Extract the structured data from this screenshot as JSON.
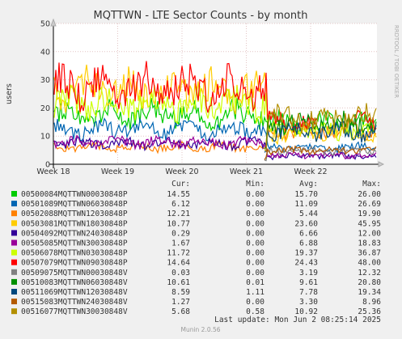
{
  "chart_data": {
    "type": "line",
    "title": "MQTTWN - LTE Sector Counts - by month",
    "ylabel": "users",
    "xlabel": "",
    "side_label": "RRDTOOL / TOBI OETIKER",
    "ylim": [
      0,
      50
    ],
    "yticks": [
      "0",
      "10",
      "20",
      "30",
      "40",
      "50"
    ],
    "xticks": [
      "Week 18",
      "Week 19",
      "Week 20",
      "Week 21",
      "Week 22"
    ],
    "grid": true,
    "legend_headers": {
      "cur": "Cur:",
      "min": "Min:",
      "avg": "Avg:",
      "max": "Max:"
    },
    "series": [
      {
        "name": "00500084MQTTWN00030848P",
        "color": "#00cc00",
        "cur": "14.55",
        "min": "0.00",
        "avg": "15.70",
        "max": "26.00"
      },
      {
        "name": "00501089MQTTWN06030848P",
        "color": "#0066b3",
        "cur": "6.12",
        "min": "0.00",
        "avg": "11.09",
        "max": "26.69"
      },
      {
        "name": "00502088MQTTWN12030848P",
        "color": "#ff8000",
        "cur": "12.21",
        "min": "0.00",
        "avg": "5.44",
        "max": "19.90"
      },
      {
        "name": "00503081MQTTWN18030848P",
        "color": "#ffcc00",
        "cur": "10.77",
        "min": "0.00",
        "avg": "23.60",
        "max": "45.95"
      },
      {
        "name": "00504092MQTTWN24030848P",
        "color": "#330099",
        "cur": "0.29",
        "min": "0.00",
        "avg": "6.66",
        "max": "12.00"
      },
      {
        "name": "00505085MQTTWN30030848P",
        "color": "#990099",
        "cur": "1.67",
        "min": "0.00",
        "avg": "6.88",
        "max": "18.83"
      },
      {
        "name": "00506078MQTTWN03030848P",
        "color": "#ccff00",
        "cur": "11.72",
        "min": "0.00",
        "avg": "19.37",
        "max": "36.87"
      },
      {
        "name": "00507079MQTTWN09030848P",
        "color": "#ff0000",
        "cur": "14.64",
        "min": "0.00",
        "avg": "24.43",
        "max": "48.00"
      },
      {
        "name": "00509075MQTTWN00030848V",
        "color": "#808080",
        "cur": "0.03",
        "min": "0.00",
        "avg": "3.19",
        "max": "12.32"
      },
      {
        "name": "00510083MQTTWN06030848V",
        "color": "#008f00",
        "cur": "10.61",
        "min": "0.01",
        "avg": "9.61",
        "max": "20.80"
      },
      {
        "name": "00511069MQTTWN12030848V",
        "color": "#00487d",
        "cur": "8.59",
        "min": "1.11",
        "avg": "7.78",
        "max": "19.34"
      },
      {
        "name": "00515083MQTTWN24030848V",
        "color": "#b35a00",
        "cur": "1.27",
        "min": "0.00",
        "avg": "3.30",
        "max": "8.96"
      },
      {
        "name": "00516077MQTTWN30030848V",
        "color": "#b38f00",
        "cur": "5.68",
        "min": "0.58",
        "avg": "10.92",
        "max": "25.36"
      }
    ],
    "last_update": "Last update: Mon Jun  2 08:25:14 2025",
    "footer": "Munin 2.0.56"
  }
}
